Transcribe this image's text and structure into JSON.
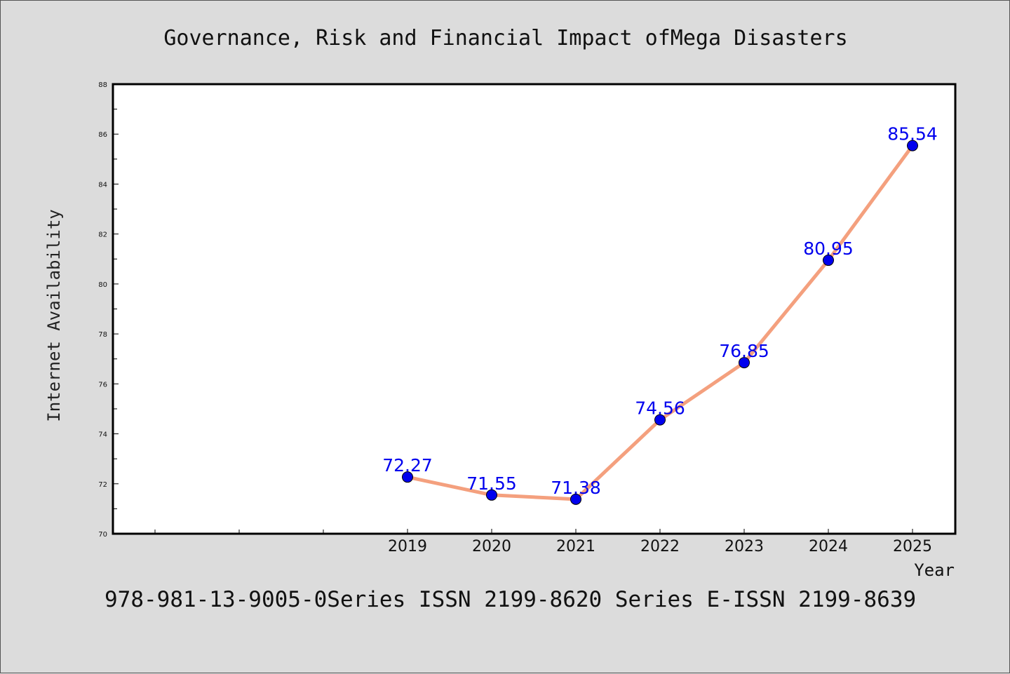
{
  "chart_data": {
    "type": "line",
    "title": "Governance, Risk and Financial Impact ofMega Disasters",
    "xlabel": "Year",
    "ylabel": "Internet Availability",
    "categories": [
      "2019",
      "2020",
      "2021",
      "2022",
      "2023",
      "2024",
      "2025"
    ],
    "series": [
      {
        "values": [
          72.27,
          71.55,
          71.38,
          74.56,
          76.85,
          80.95,
          85.54
        ]
      }
    ],
    "data_labels": [
      "72.27",
      "71.55",
      "71.38",
      "74.56",
      "76.85",
      "80.95",
      "85.54"
    ],
    "ylim": [
      70,
      88
    ],
    "yticks": [
      "70",
      "72",
      "74",
      "76",
      "78",
      "80",
      "82",
      "84",
      "86",
      "88"
    ],
    "grid": false,
    "line_color": "#f4a07e",
    "marker_color": "#0000ee",
    "label_color": "#0000ee"
  },
  "footer": {
    "text": "978-981-13-9005-0Series ISSN 2199-8620 Series E-ISSN 2199-8639"
  }
}
